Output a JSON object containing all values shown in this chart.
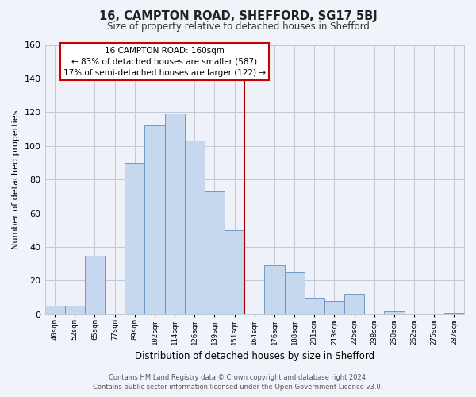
{
  "title": "16, CAMPTON ROAD, SHEFFORD, SG17 5BJ",
  "subtitle": "Size of property relative to detached houses in Shefford",
  "xlabel": "Distribution of detached houses by size in Shefford",
  "ylabel": "Number of detached properties",
  "bar_labels": [
    "40sqm",
    "52sqm",
    "65sqm",
    "77sqm",
    "89sqm",
    "102sqm",
    "114sqm",
    "126sqm",
    "139sqm",
    "151sqm",
    "164sqm",
    "176sqm",
    "188sqm",
    "201sqm",
    "213sqm",
    "225sqm",
    "238sqm",
    "250sqm",
    "262sqm",
    "275sqm",
    "287sqm"
  ],
  "bar_values": [
    5,
    5,
    35,
    0,
    90,
    112,
    119,
    103,
    73,
    50,
    0,
    29,
    25,
    10,
    8,
    12,
    0,
    2,
    0,
    0,
    1
  ],
  "bar_color": "#c5d8ed",
  "bar_edge_color": "#6090c0",
  "vline_color": "#aa0000",
  "vline_x": 9.5,
  "ylim": [
    0,
    160
  ],
  "yticks": [
    0,
    20,
    40,
    60,
    80,
    100,
    120,
    140,
    160
  ],
  "annotation_title": "16 CAMPTON ROAD: 160sqm",
  "annotation_line1": "← 83% of detached houses are smaller (587)",
  "annotation_line2": "17% of semi-detached houses are larger (122) →",
  "annotation_box_facecolor": "#ffffff",
  "annotation_border_color": "#cc0000",
  "footer_line1": "Contains HM Land Registry data © Crown copyright and database right 2024.",
  "footer_line2": "Contains public sector information licensed under the Open Government Licence v3.0.",
  "bg_color": "#f0f4fa",
  "plot_bg_color": "#eef2f8",
  "grid_color": "#c0c8d8"
}
